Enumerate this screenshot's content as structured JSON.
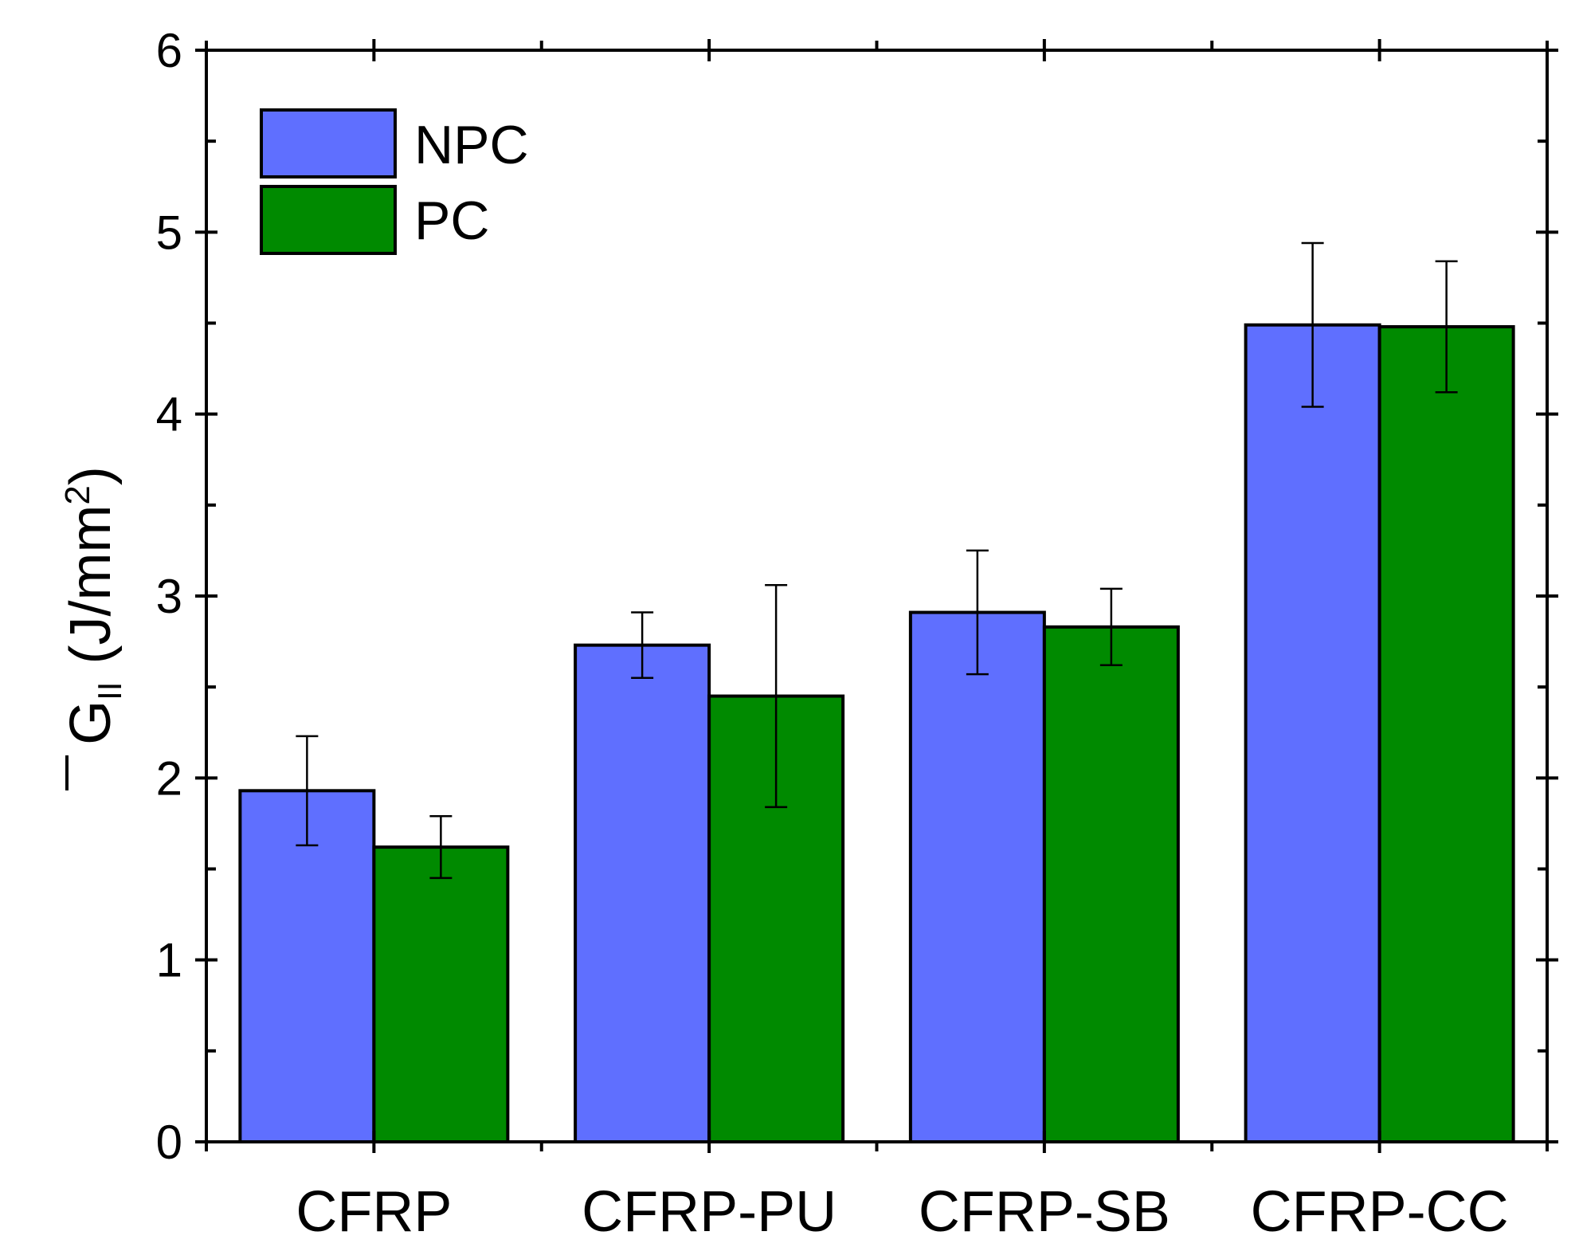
{
  "chart_data": {
    "type": "bar",
    "title": "",
    "xlabel": "",
    "ylabel": "(J/mm",
    "ylabel_symbol": "G",
    "ylabel_subscript": "II",
    "ylabel_superscript": "2",
    "ylabel_close": ")",
    "ylim": [
      0,
      6
    ],
    "yticks": [
      0,
      1,
      2,
      3,
      4,
      5,
      6
    ],
    "categories": [
      "CFRP",
      "CFRP-PU",
      "CFRP-SB",
      "CFRP-CC"
    ],
    "legend_position": "top-left",
    "series": [
      {
        "name": "NPC",
        "color": "#5f6fff",
        "values": [
          1.93,
          2.73,
          2.91,
          4.49
        ],
        "errors": [
          0.3,
          0.18,
          0.34,
          0.45
        ]
      },
      {
        "name": "PC",
        "color": "#008a00",
        "values": [
          1.62,
          2.45,
          2.83,
          4.48
        ],
        "errors": [
          0.17,
          0.61,
          0.21,
          0.36
        ]
      }
    ]
  }
}
